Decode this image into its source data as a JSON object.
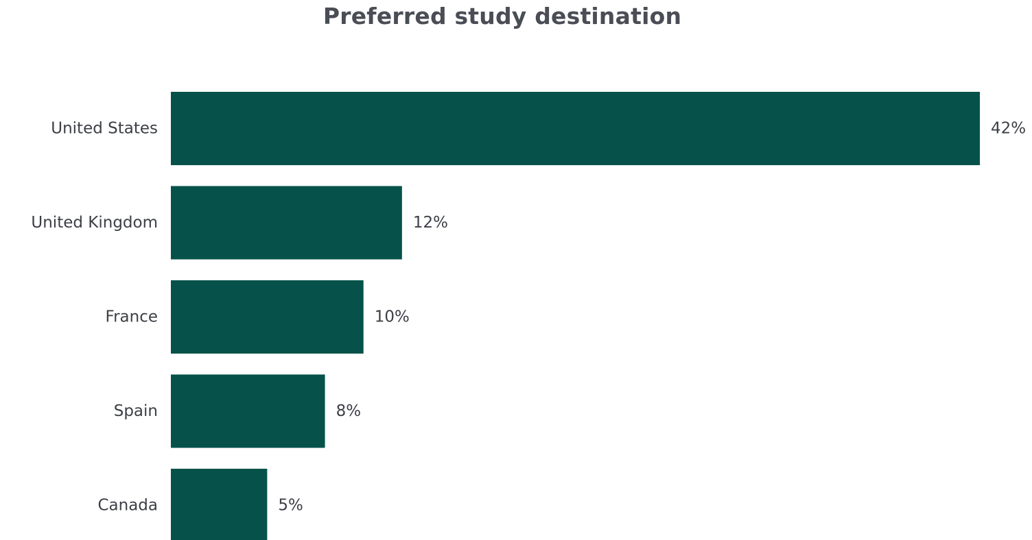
{
  "chart_data": {
    "type": "bar",
    "orientation": "horizontal",
    "title": "Preferred study destination",
    "categories": [
      "United States",
      "United Kingdom",
      "France",
      "Spain",
      "Canada"
    ],
    "values": [
      42,
      12,
      10,
      8,
      5
    ],
    "value_labels": [
      "42%",
      "12%",
      "10%",
      "8%",
      "5%"
    ],
    "unit": "%",
    "xlim": [
      0,
      42
    ],
    "grid": false,
    "legend": "none",
    "bar_color": "#06524a"
  }
}
